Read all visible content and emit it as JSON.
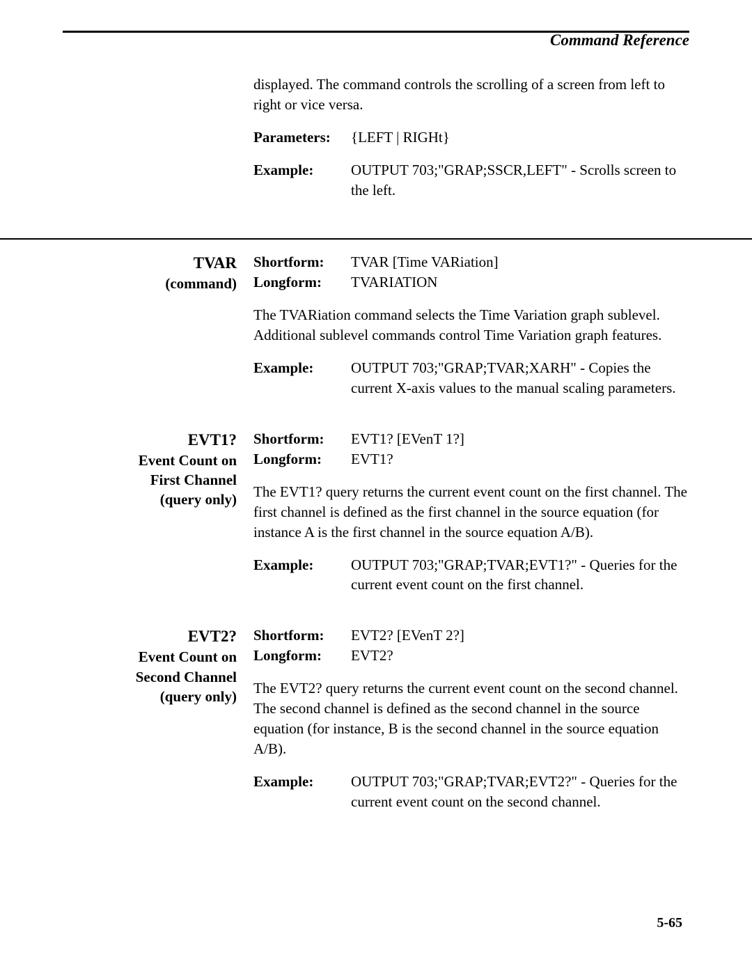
{
  "header": {
    "title": "Command Reference"
  },
  "intro": {
    "para": "displayed. The command controls the scrolling of a screen from left to right or vice versa.",
    "parameters_label": "Parameters:",
    "parameters_value": "{LEFT | RIGHt}",
    "example_label": "Example:",
    "example_value": "OUTPUT 703;\"GRAP;SSCR,LEFT\" - Scrolls screen to the left."
  },
  "tvar": {
    "name": "TVAR",
    "sub": "(command)",
    "shortform_label": "Shortform:",
    "shortform_value": "TVAR [Time VARiation]",
    "longform_label": "Longform:",
    "longform_value": "TVARIATION",
    "para": "The TVARiation command selects the Time Variation graph sublevel. Additional sublevel commands control Time Variation graph features.",
    "example_label": "Example:",
    "example_value": "OUTPUT 703;\"GRAP;TVAR;XARH\" - Copies the current X-axis values to the manual scaling parameters."
  },
  "evt1": {
    "name": "EVT1?",
    "sub1": "Event Count on",
    "sub2": "First Channel",
    "sub3": "(query only)",
    "shortform_label": "Shortform:",
    "shortform_value": "EVT1? [EVenT 1?]",
    "longform_label": "Longform:",
    "longform_value": "EVT1?",
    "para": "The EVT1? query returns the current event count on the first channel. The first channel is defined as the first channel in the source equation (for instance A is the first channel in the source equation A/B).",
    "example_label": "Example:",
    "example_value": "OUTPUT 703;\"GRAP;TVAR;EVT1?\" - Queries for the current event count on the first channel."
  },
  "evt2": {
    "name": "EVT2?",
    "sub1": "Event Count on",
    "sub2": "Second Channel",
    "sub3": "(query only)",
    "shortform_label": "Shortform:",
    "shortform_value": "EVT2? [EVenT 2?]",
    "longform_label": "Longform:",
    "longform_value": "EVT2?",
    "para": "The EVT2? query returns the current event count on the second channel. The second channel is defined as the second channel in the source equation (for instance, B is the second channel in the source equation A/B).",
    "example_label": "Example:",
    "example_value": "OUTPUT 703;\"GRAP;TVAR;EVT2?\" - Queries for the current event count on the second channel."
  },
  "page_number": "5-65"
}
